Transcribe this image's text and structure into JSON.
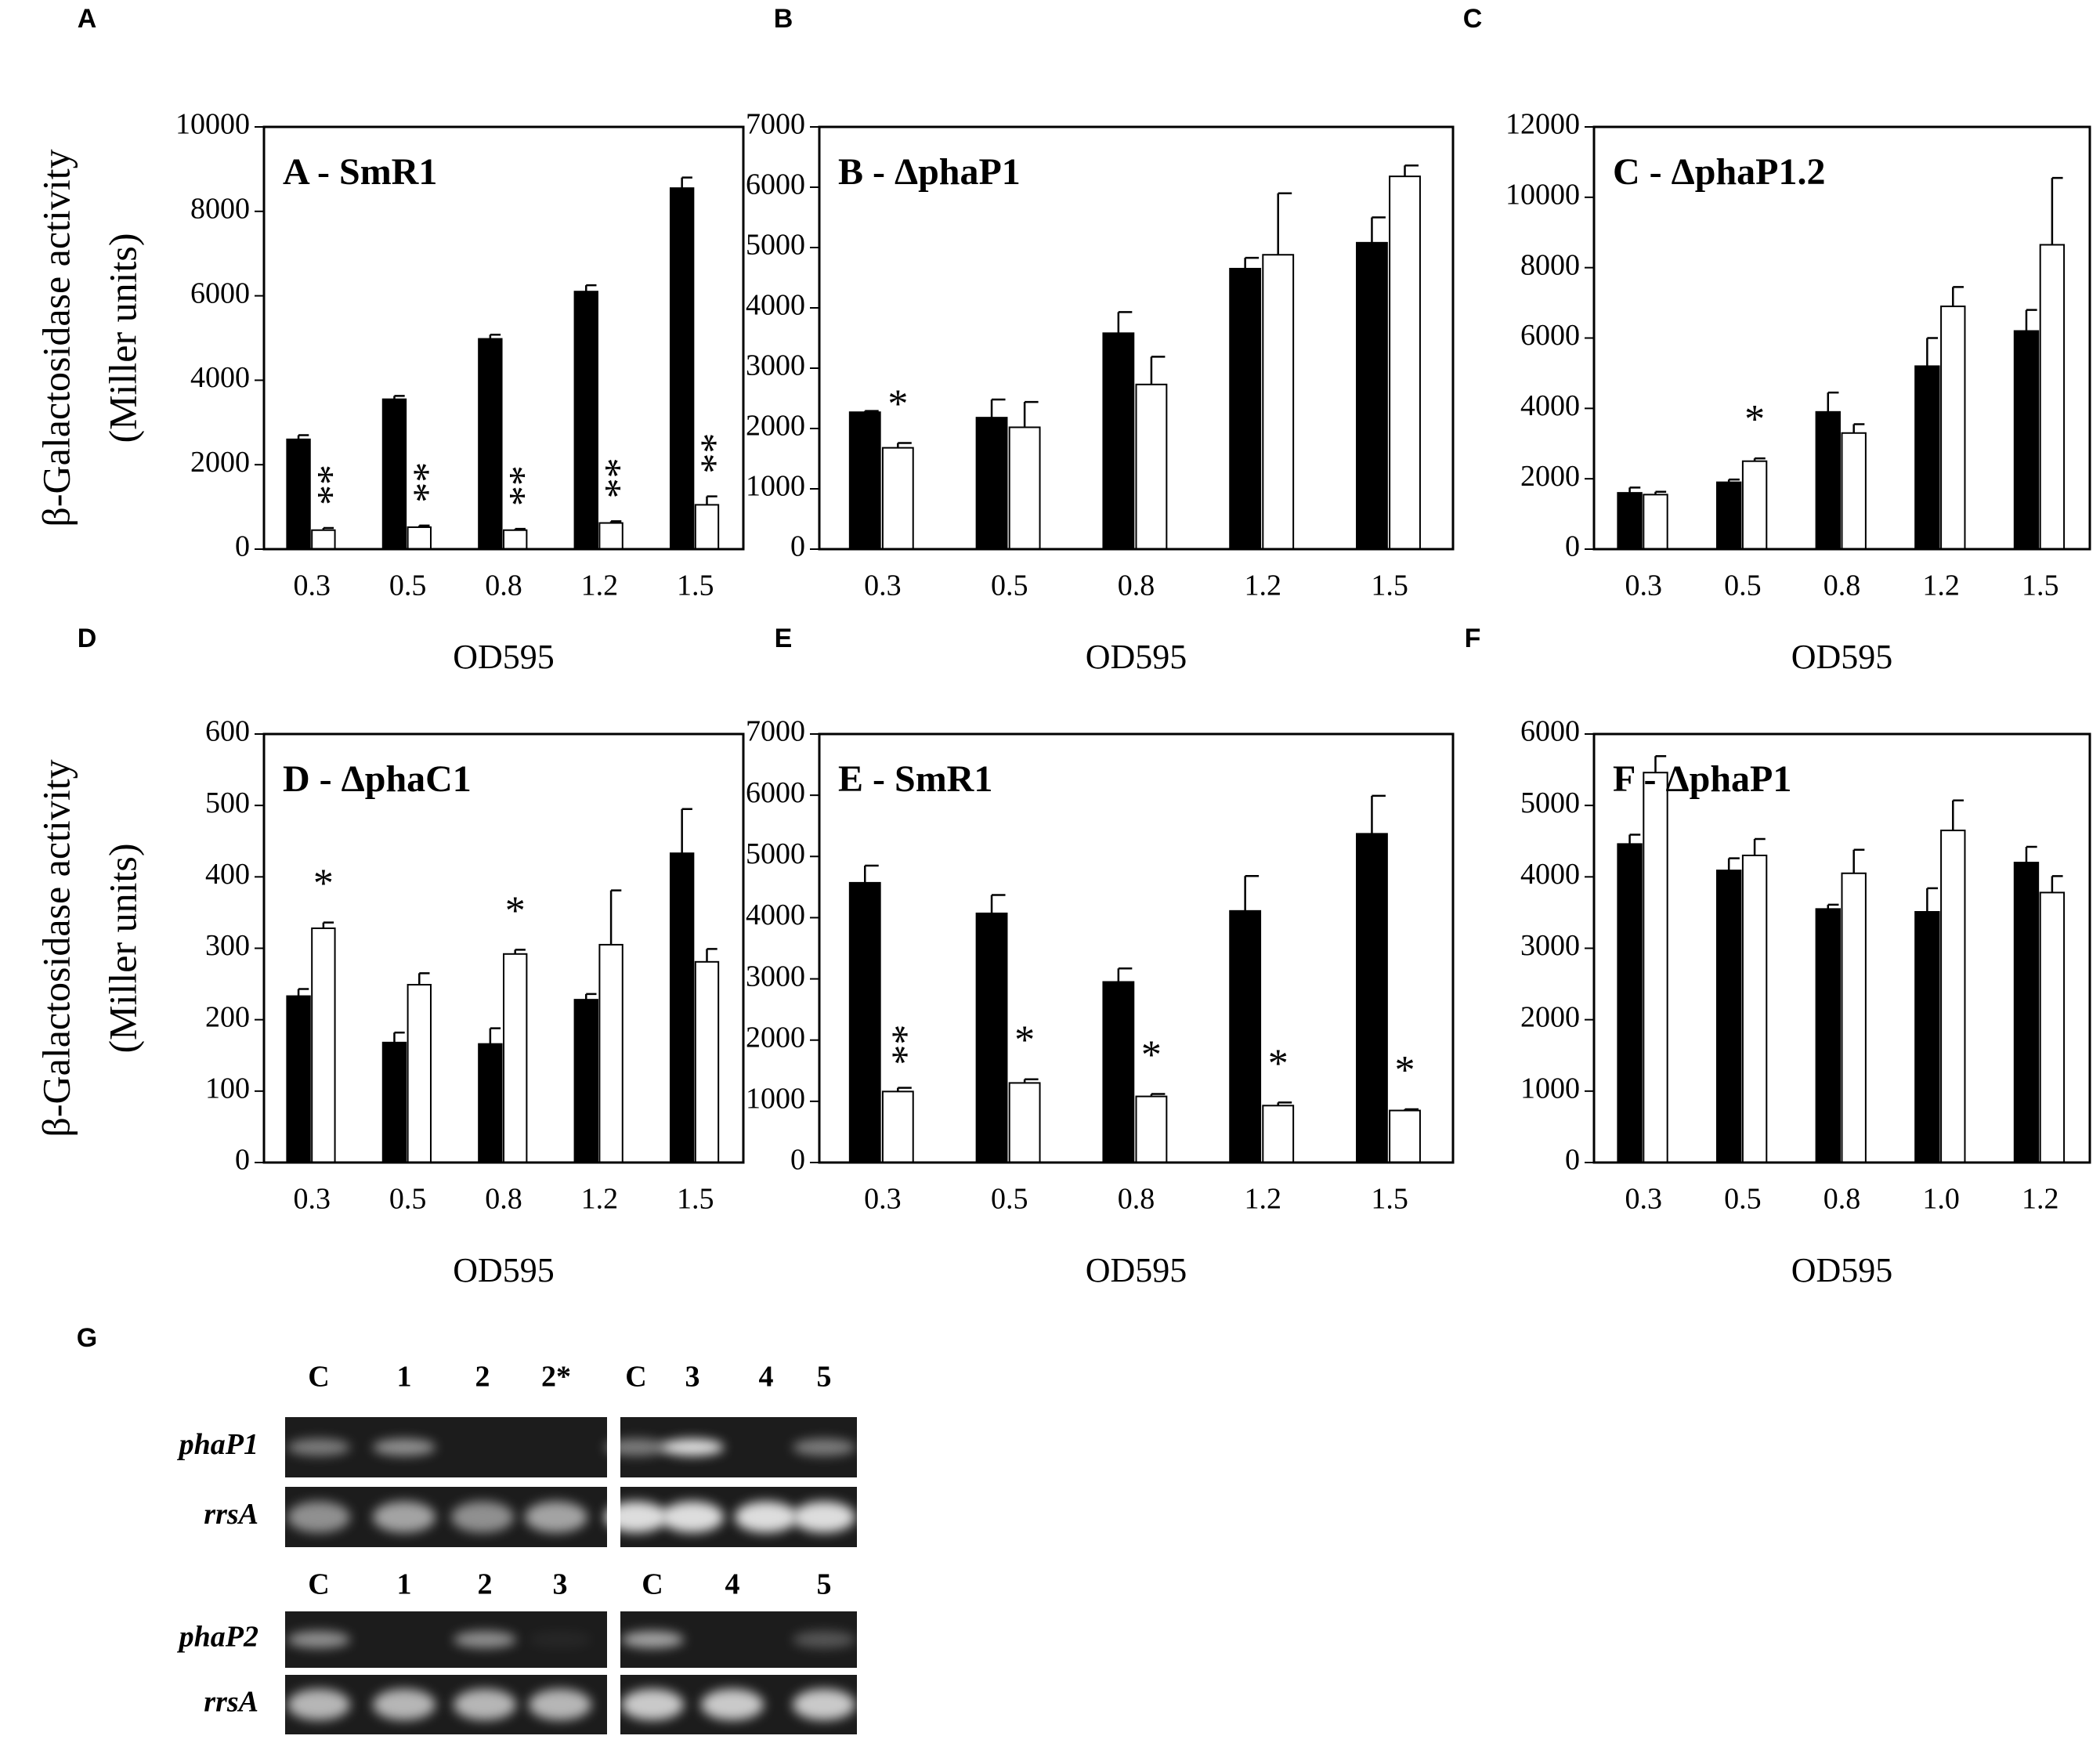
{
  "chart_data": [
    {
      "type": "bar",
      "label": "A",
      "title": "A - SmR1",
      "ylabel": [
        "β-Galactosidase activity",
        "(Miller units)"
      ],
      "xlabel": "OD595",
      "categories": [
        "0.3",
        "0.5",
        "0.8",
        "1.2",
        "1.5"
      ],
      "ylim": [
        0,
        10000
      ],
      "yticks": [
        0,
        2000,
        4000,
        6000,
        8000,
        10000
      ],
      "series": [
        {
          "color": "#000000",
          "values": [
            2600,
            3550,
            4980,
            6100,
            8550
          ],
          "errors": [
            100,
            80,
            100,
            150,
            250
          ]
        },
        {
          "color": "#ffffff",
          "values": [
            450,
            520,
            450,
            620,
            1050
          ],
          "errors": [
            50,
            40,
            30,
            40,
            200
          ],
          "annotations": [
            "**",
            "**",
            "**",
            "**",
            "**"
          ]
        }
      ]
    },
    {
      "type": "bar",
      "label": "B",
      "title": "B - ΔphaP1",
      "xlabel": "OD595",
      "categories": [
        "0.3",
        "0.5",
        "0.8",
        "1.2",
        "1.5"
      ],
      "ylim": [
        0,
        7000
      ],
      "yticks": [
        0,
        1000,
        2000,
        3000,
        4000,
        5000,
        6000,
        7000
      ],
      "series": [
        {
          "color": "#000000",
          "values": [
            2270,
            2180,
            3580,
            4650,
            5080
          ],
          "errors": [
            20,
            300,
            350,
            180,
            420
          ]
        },
        {
          "color": "#ffffff",
          "values": [
            1680,
            2020,
            2730,
            4880,
            6180
          ],
          "errors": [
            80,
            420,
            460,
            1020,
            180
          ],
          "annotations": [
            "*",
            null,
            null,
            null,
            null
          ]
        }
      ]
    },
    {
      "type": "bar",
      "label": "C",
      "title": "C - ΔphaP1.2",
      "xlabel": "OD595",
      "categories": [
        "0.3",
        "0.5",
        "0.8",
        "1.2",
        "1.5"
      ],
      "ylim": [
        0,
        12000
      ],
      "yticks": [
        0,
        2000,
        4000,
        6000,
        8000,
        10000,
        12000
      ],
      "series": [
        {
          "color": "#000000",
          "values": [
            1600,
            1900,
            3900,
            5200,
            6200
          ],
          "errors": [
            150,
            80,
            550,
            800,
            600
          ]
        },
        {
          "color": "#ffffff",
          "values": [
            1550,
            2500,
            3300,
            6900,
            8650
          ],
          "errors": [
            80,
            80,
            250,
            550,
            1900
          ],
          "annotations": [
            null,
            "*",
            null,
            null,
            null
          ]
        }
      ]
    },
    {
      "type": "bar",
      "label": "D",
      "title": "D - ΔphaC1",
      "ylabel": [
        "β-Galactosidase activity",
        "(Miller units)"
      ],
      "xlabel": "OD595",
      "categories": [
        "0.3",
        "0.5",
        "0.8",
        "1.2",
        "1.5"
      ],
      "ylim": [
        0,
        600
      ],
      "yticks": [
        0,
        100,
        200,
        300,
        400,
        500,
        600
      ],
      "series": [
        {
          "color": "#000000",
          "values": [
            233,
            168,
            166,
            228,
            433
          ],
          "errors": [
            10,
            14,
            22,
            8,
            62
          ]
        },
        {
          "color": "#ffffff",
          "values": [
            328,
            249,
            292,
            305,
            281
          ],
          "errors": [
            8,
            16,
            6,
            76,
            18
          ],
          "annotations": [
            "*",
            null,
            "*",
            null,
            null
          ]
        }
      ]
    },
    {
      "type": "bar",
      "label": "E",
      "title": "E - SmR1",
      "xlabel": "OD595",
      "categories": [
        "0.3",
        "0.5",
        "0.8",
        "1.2",
        "1.5"
      ],
      "ylim": [
        0,
        7000
      ],
      "yticks": [
        0,
        1000,
        2000,
        3000,
        4000,
        5000,
        6000,
        7000
      ],
      "series": [
        {
          "color": "#000000",
          "values": [
            4570,
            4070,
            2950,
            4110,
            5370
          ],
          "errors": [
            280,
            300,
            220,
            570,
            620
          ]
        },
        {
          "color": "#ffffff",
          "values": [
            1160,
            1300,
            1080,
            930,
            850
          ],
          "errors": [
            60,
            60,
            40,
            50,
            20
          ],
          "annotations": [
            "**",
            "*",
            "*",
            "*",
            "*"
          ]
        }
      ]
    },
    {
      "type": "bar",
      "label": "F",
      "title": "F - ΔphaP1",
      "xlabel": "OD595",
      "categories": [
        "0.3",
        "0.5",
        "0.8",
        "1.0",
        "1.2"
      ],
      "ylim": [
        0,
        6000
      ],
      "yticks": [
        0,
        1000,
        2000,
        3000,
        4000,
        5000,
        6000
      ],
      "series": [
        {
          "color": "#000000",
          "values": [
            4460,
            4090,
            3550,
            3510,
            4200
          ],
          "errors": [
            130,
            170,
            60,
            330,
            220
          ]
        },
        {
          "color": "#ffffff",
          "values": [
            5460,
            4300,
            4050,
            4650,
            3780
          ],
          "errors": [
            230,
            230,
            330,
            420,
            230
          ]
        }
      ]
    }
  ],
  "gel": {
    "label": "G",
    "top": {
      "lanes_left": [
        "C",
        "1",
        "2",
        "2*"
      ],
      "lanes_right": [
        "C",
        "3",
        "4",
        "5"
      ],
      "rows": [
        "phaP1",
        "rrsA"
      ]
    },
    "bottom": {
      "lanes_left": [
        "C",
        "1",
        "2",
        "3"
      ],
      "lanes_right": [
        "C",
        "4",
        "5"
      ],
      "rows": [
        "phaP2",
        "rrsA"
      ]
    }
  }
}
